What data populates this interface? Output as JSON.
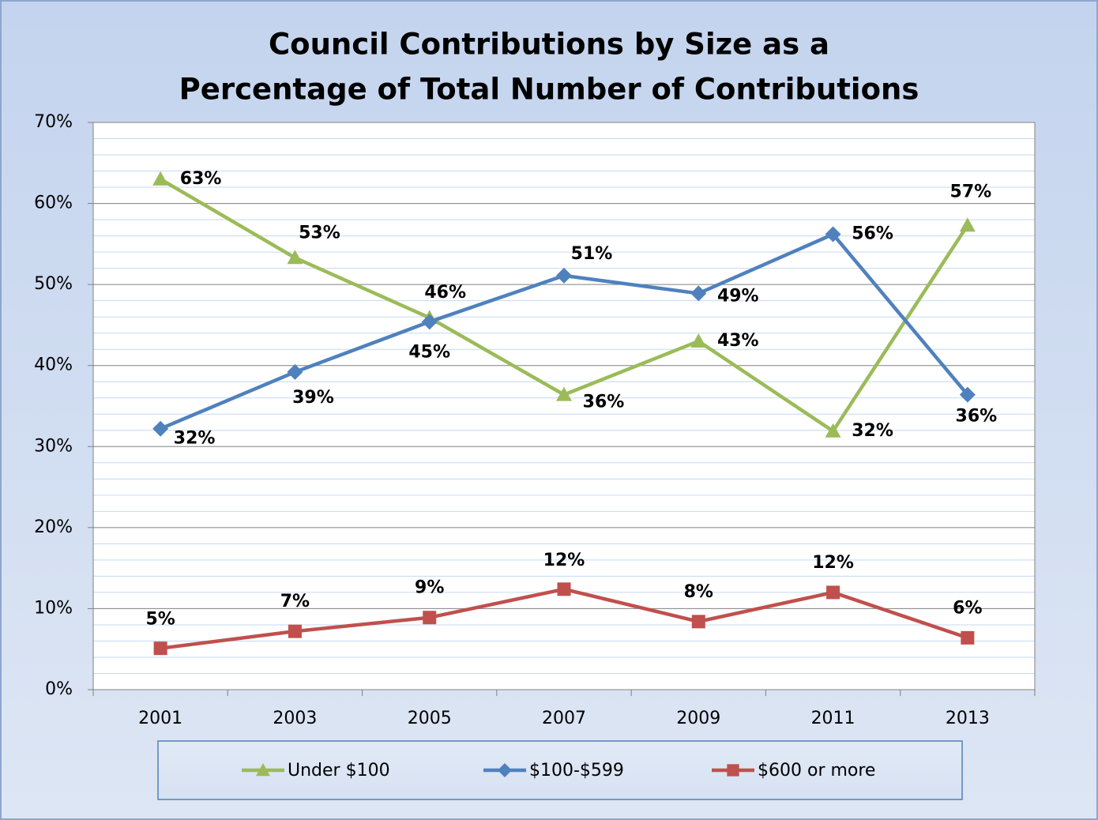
{
  "chart_data": {
    "type": "line",
    "title": [
      "Council Contributions by Size as a",
      "Percentage of Total Number of Contributions"
    ],
    "categories": [
      "2001",
      "2003",
      "2005",
      "2007",
      "2009",
      "2011",
      "2013"
    ],
    "series": [
      {
        "name": "Under $100",
        "color": "#9bbb59",
        "marker": "triangle",
        "values": [
          63.0,
          53.3,
          45.9,
          36.4,
          43.0,
          31.9,
          57.3
        ],
        "value_labels": [
          "63%",
          "53%",
          "46%",
          "36%",
          "43%",
          "32%",
          "57%"
        ]
      },
      {
        "name": "$100-$599",
        "color": "#4f81bd",
        "marker": "diamond",
        "values": [
          32.2,
          39.2,
          45.4,
          51.1,
          48.9,
          56.2,
          36.4
        ],
        "value_labels": [
          "32%",
          "39%",
          "45%",
          "51%",
          "49%",
          "56%",
          "36%"
        ]
      },
      {
        "name": "$600 or more",
        "color": "#c0504d",
        "marker": "square",
        "values": [
          5.1,
          7.2,
          8.9,
          12.4,
          8.4,
          12.0,
          6.4
        ],
        "value_labels": [
          "5%",
          "7%",
          "9%",
          "12%",
          "8%",
          "12%",
          "6%"
        ]
      }
    ],
    "ylim": [
      0,
      70
    ],
    "yticks": [
      {
        "value": 0,
        "label": "0%"
      },
      {
        "value": 10,
        "label": "10%"
      },
      {
        "value": 20,
        "label": "20%"
      },
      {
        "value": 30,
        "label": "30%"
      },
      {
        "value": 40,
        "label": "40%"
      },
      {
        "value": 50,
        "label": "50%"
      },
      {
        "value": 60,
        "label": "60%"
      },
      {
        "value": 70,
        "label": "70%"
      }
    ],
    "minor_yticks": [
      2,
      4,
      6,
      8,
      12,
      14,
      16,
      18,
      22,
      24,
      26,
      28,
      32,
      34,
      36,
      38,
      42,
      44,
      46,
      48,
      52,
      54,
      56,
      58,
      62,
      64,
      66,
      68
    ],
    "grid": true,
    "legend": "bottom"
  }
}
